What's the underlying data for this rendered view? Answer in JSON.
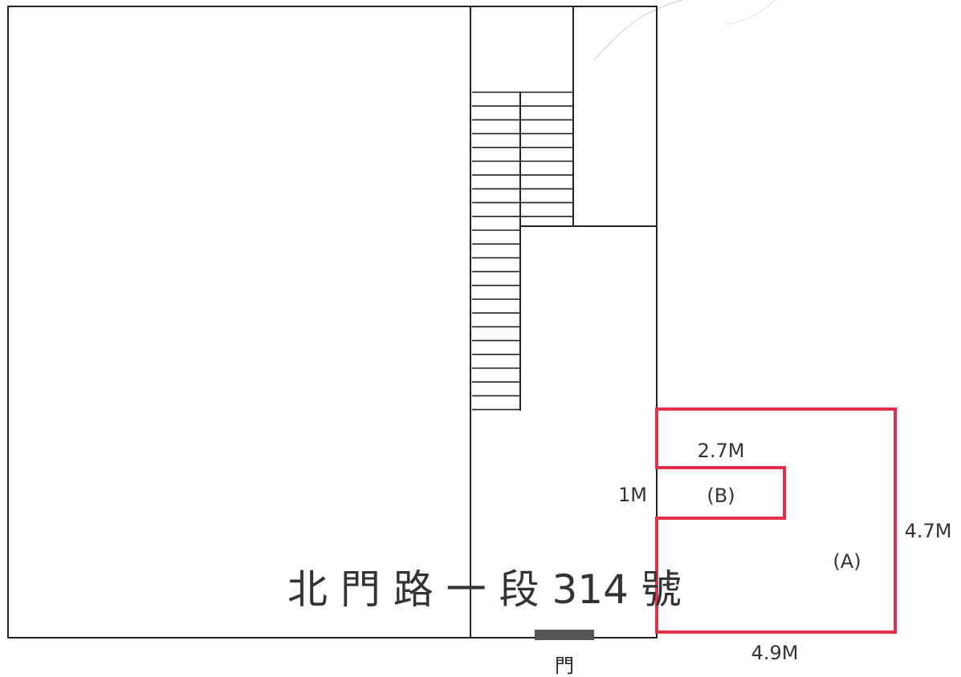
{
  "labels": {
    "address": "北 門 路 一 段 314 號",
    "door": "門",
    "area_a": "(A)",
    "area_b": "(B)",
    "dim_b_width": "2.7M",
    "dim_b_height": "1M",
    "dim_a_height": "4.7M",
    "dim_a_width": "4.9M"
  },
  "colors": {
    "outline": "#222222",
    "highlight": "#e0304a",
    "door_fill": "#555555"
  }
}
